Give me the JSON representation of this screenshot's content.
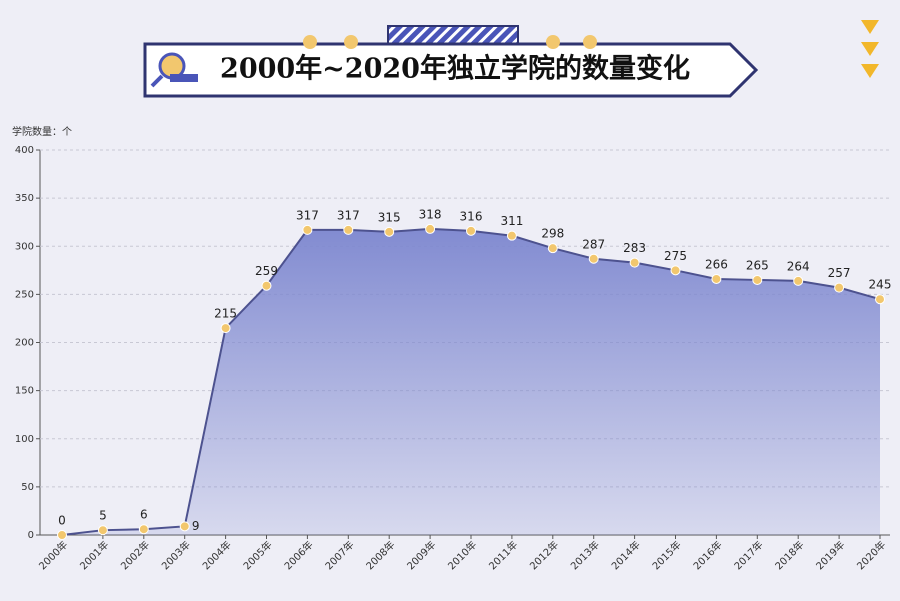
{
  "chart_data": {
    "type": "area",
    "title": "2000年~2020年独立学院的数量变化",
    "y_axis_label": "学院数量：个",
    "categories": [
      "2000年",
      "2001年",
      "2002年",
      "2003年",
      "2004年",
      "2005年",
      "2006年",
      "2007年",
      "2008年",
      "2009年",
      "2010年",
      "2011年",
      "2012年",
      "2013年",
      "2014年",
      "2015年",
      "2016年",
      "2017年",
      "2018年",
      "2019年",
      "2020年"
    ],
    "values": [
      0,
      5,
      6,
      9,
      215,
      259,
      317,
      317,
      315,
      318,
      316,
      311,
      298,
      287,
      283,
      275,
      266,
      265,
      264,
      257,
      245
    ],
    "color": "#4d528f",
    "fill_color": "#7c86cf",
    "marker_color": "#f2c76e",
    "ylim": [
      0,
      400
    ],
    "yticks": [
      0,
      50,
      100,
      150,
      200,
      250,
      300,
      350,
      400
    ],
    "grid": true
  }
}
